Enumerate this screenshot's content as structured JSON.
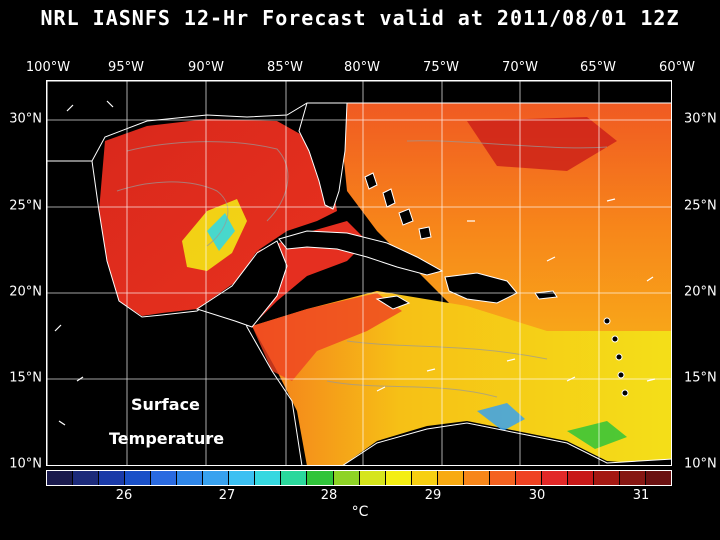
{
  "title": "NRL IASNFS  12-Hr Forecast valid at 2011/08/01 12Z",
  "longitude_labels": [
    "100°W",
    "95°W",
    "90°W",
    "85°W",
    "80°W",
    "75°W",
    "70°W",
    "65°W",
    "60°W"
  ],
  "latitude_labels": [
    "30°N",
    "25°N",
    "20°N",
    "15°N",
    "10°N"
  ],
  "map_labels": {
    "line1": "Surface",
    "line2": "Temperature"
  },
  "colorbar": {
    "tick_labels": [
      "26",
      "27",
      "28",
      "29",
      "30",
      "31"
    ],
    "unit": "°C",
    "colors": [
      "#1a1a4d",
      "#1c2a7a",
      "#1a3aa8",
      "#1a50c8",
      "#2a6ae0",
      "#2f86e8",
      "#38a2ef",
      "#3cc0f2",
      "#35d8e0",
      "#2ad89c",
      "#30c43a",
      "#8ed326",
      "#d6e51c",
      "#f4ee14",
      "#f7cf12",
      "#f8aa12",
      "#f7861a",
      "#f46220",
      "#ef4222",
      "#e22828",
      "#c81818",
      "#a41812",
      "#861612",
      "#6a1010"
    ]
  },
  "legend_colors": {
    "land": "#000000",
    "coast": "#ffffff",
    "warm_gulf": "#e8321e",
    "atlantic": "#f7861a",
    "caribbean_south": "#f4d914"
  }
}
